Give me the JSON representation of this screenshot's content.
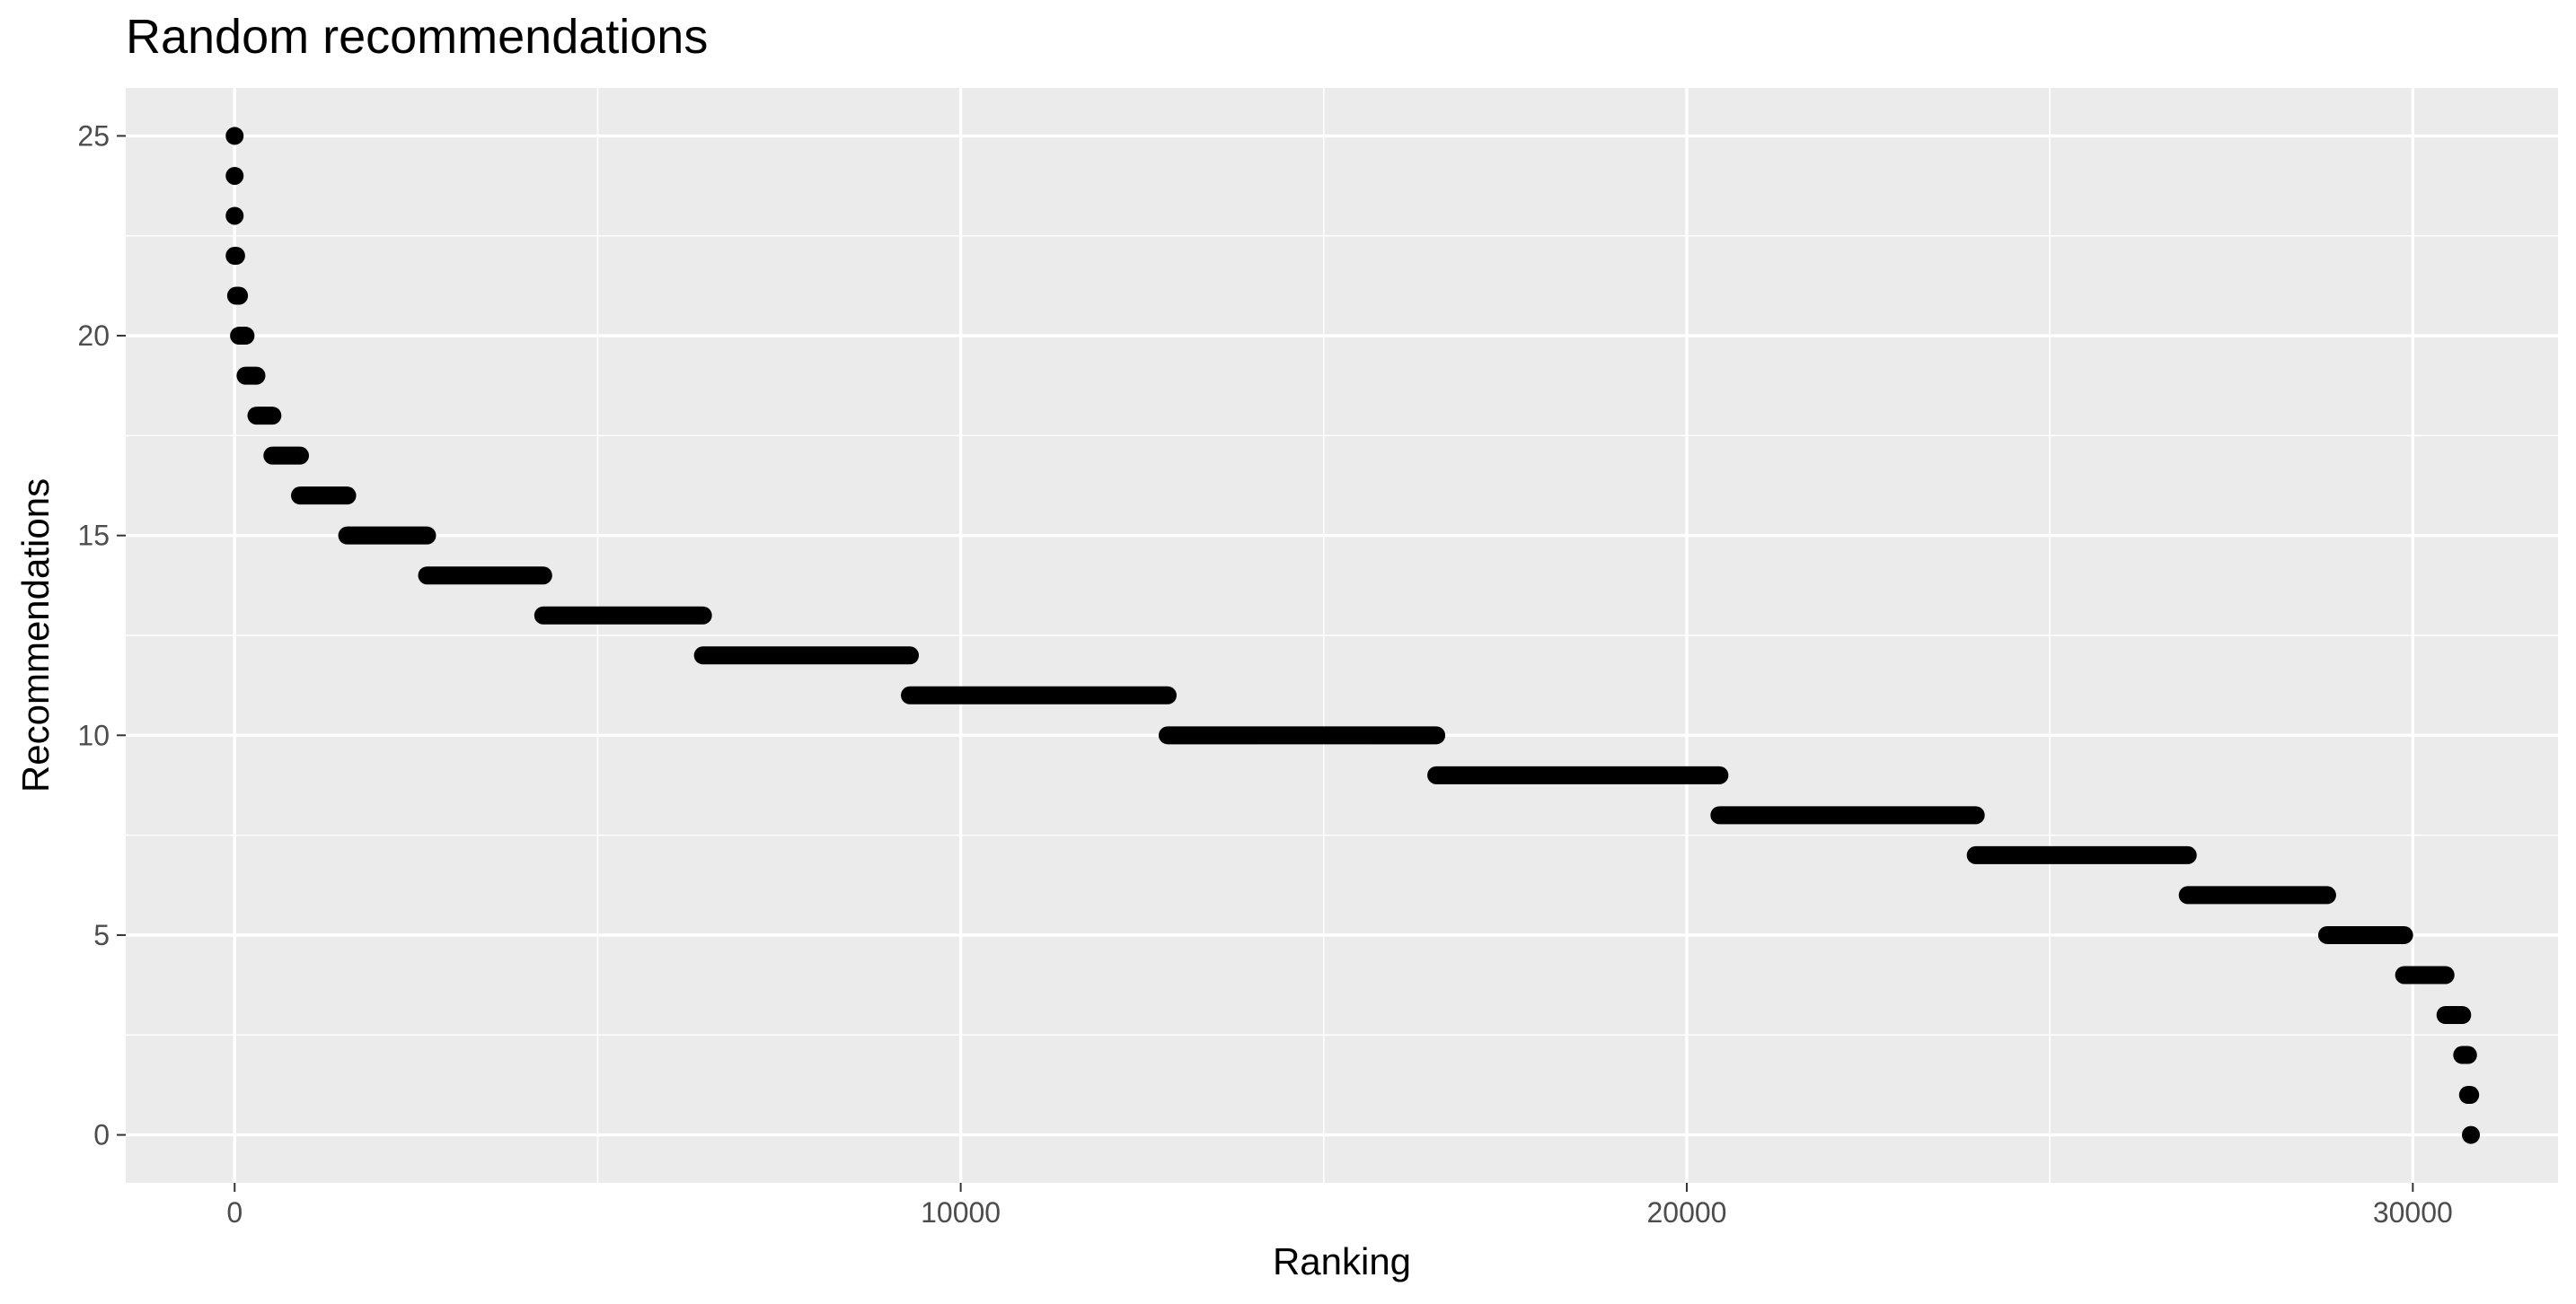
{
  "chart_data": {
    "type": "scatter",
    "title": "Random recommendations",
    "xlabel": "Ranking",
    "ylabel": "Recommendations",
    "xlim": [
      -1500,
      32000
    ],
    "ylim": [
      -1.2,
      26.2
    ],
    "x_ticks": [
      0,
      10000,
      20000,
      30000
    ],
    "x_tick_labels": [
      "0",
      "10000",
      "20000",
      "30000"
    ],
    "y_ticks": [
      0,
      5,
      10,
      15,
      20,
      25
    ],
    "y_tick_labels": [
      "0",
      "5",
      "10",
      "15",
      "20",
      "25"
    ],
    "grid": true,
    "legend": "none",
    "point_color": "#000000",
    "panel_background": "#ebebeb",
    "series": [
      {
        "points": [
          {
            "y": 25,
            "x_start": 0,
            "x_end": 0
          },
          {
            "y": 24,
            "x_start": 0,
            "x_end": 0
          },
          {
            "y": 23,
            "x_start": 0,
            "x_end": 0
          },
          {
            "y": 22,
            "x_start": 0,
            "x_end": 20
          },
          {
            "y": 21,
            "x_start": 20,
            "x_end": 60
          },
          {
            "y": 20,
            "x_start": 60,
            "x_end": 150
          },
          {
            "y": 19,
            "x_start": 150,
            "x_end": 300
          },
          {
            "y": 18,
            "x_start": 300,
            "x_end": 520
          },
          {
            "y": 17,
            "x_start": 520,
            "x_end": 900
          },
          {
            "y": 16,
            "x_start": 900,
            "x_end": 1550
          },
          {
            "y": 15,
            "x_start": 1550,
            "x_end": 2650
          },
          {
            "y": 14,
            "x_start": 2650,
            "x_end": 4250
          },
          {
            "y": 13,
            "x_start": 4250,
            "x_end": 6450
          },
          {
            "y": 12,
            "x_start": 6450,
            "x_end": 9300
          },
          {
            "y": 11,
            "x_start": 9300,
            "x_end": 12850
          },
          {
            "y": 10,
            "x_start": 12850,
            "x_end": 16550
          },
          {
            "y": 9,
            "x_start": 16550,
            "x_end": 20450
          },
          {
            "y": 8,
            "x_start": 20450,
            "x_end": 23980
          },
          {
            "y": 7,
            "x_start": 23980,
            "x_end": 26900
          },
          {
            "y": 6,
            "x_start": 26900,
            "x_end": 28820
          },
          {
            "y": 5,
            "x_start": 28820,
            "x_end": 29880
          },
          {
            "y": 4,
            "x_start": 29880,
            "x_end": 30450
          },
          {
            "y": 3,
            "x_start": 30450,
            "x_end": 30680
          },
          {
            "y": 2,
            "x_start": 30680,
            "x_end": 30760
          },
          {
            "y": 1,
            "x_start": 30760,
            "x_end": 30790
          },
          {
            "y": 0,
            "x_start": 30800,
            "x_end": 30800
          }
        ]
      }
    ]
  }
}
